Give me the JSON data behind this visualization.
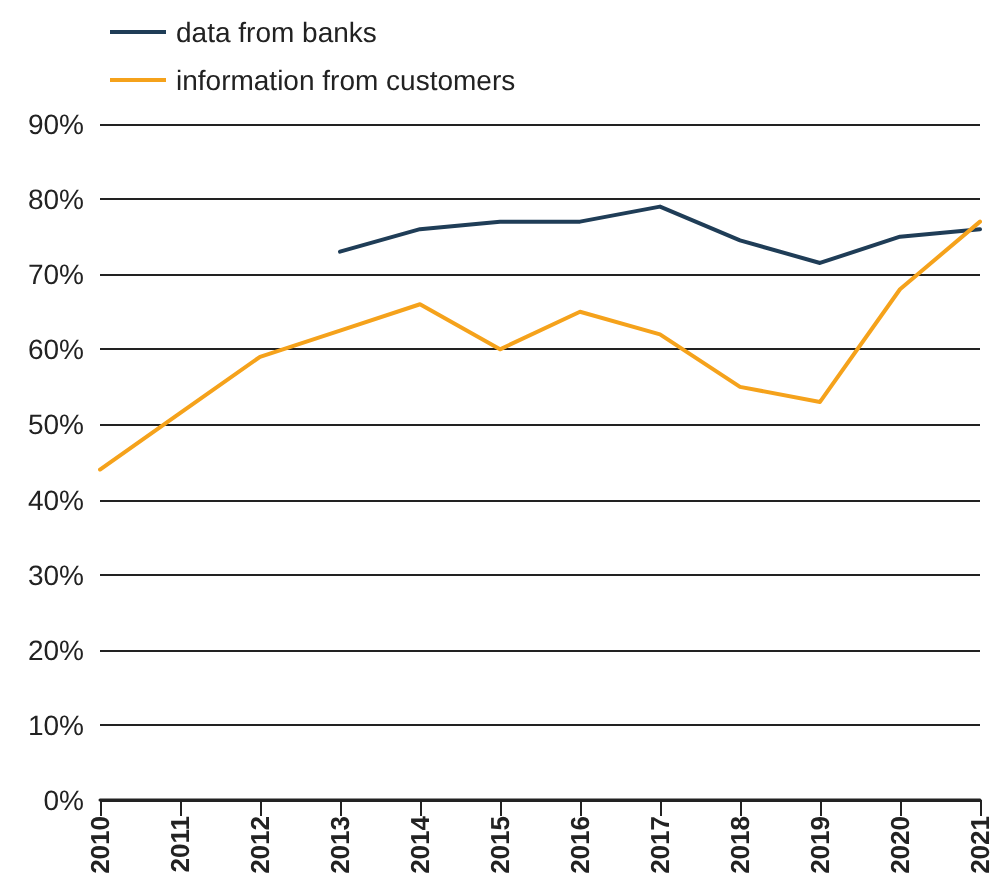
{
  "chart_data": {
    "type": "line",
    "categories": [
      "2010",
      "2011",
      "2012",
      "2013",
      "2014",
      "2015",
      "2016",
      "2017",
      "2018",
      "2019",
      "2020",
      "2021"
    ],
    "series": [
      {
        "name": "data from banks",
        "color": "#1f3d57",
        "values": [
          null,
          null,
          null,
          73,
          76,
          77,
          77,
          79,
          74.5,
          71.5,
          75,
          76
        ]
      },
      {
        "name": "information from customers",
        "color": "#f5a21b",
        "values": [
          44,
          51.5,
          59,
          62.5,
          66,
          60,
          65,
          62,
          55,
          53,
          68,
          77
        ]
      }
    ],
    "ylim": [
      0,
      90
    ],
    "yticks": [
      {
        "value": 0,
        "label": "0%"
      },
      {
        "value": 10,
        "label": "10%"
      },
      {
        "value": 20,
        "label": "20%"
      },
      {
        "value": 30,
        "label": "30%"
      },
      {
        "value": 40,
        "label": "40%"
      },
      {
        "value": 50,
        "label": "50%"
      },
      {
        "value": 60,
        "label": "60%"
      },
      {
        "value": 70,
        "label": "70%"
      },
      {
        "value": 80,
        "label": "80%"
      },
      {
        "value": 90,
        "label": "90%"
      }
    ],
    "grid": "y",
    "legend": "top left",
    "marker": "none",
    "line_style": "solid"
  }
}
